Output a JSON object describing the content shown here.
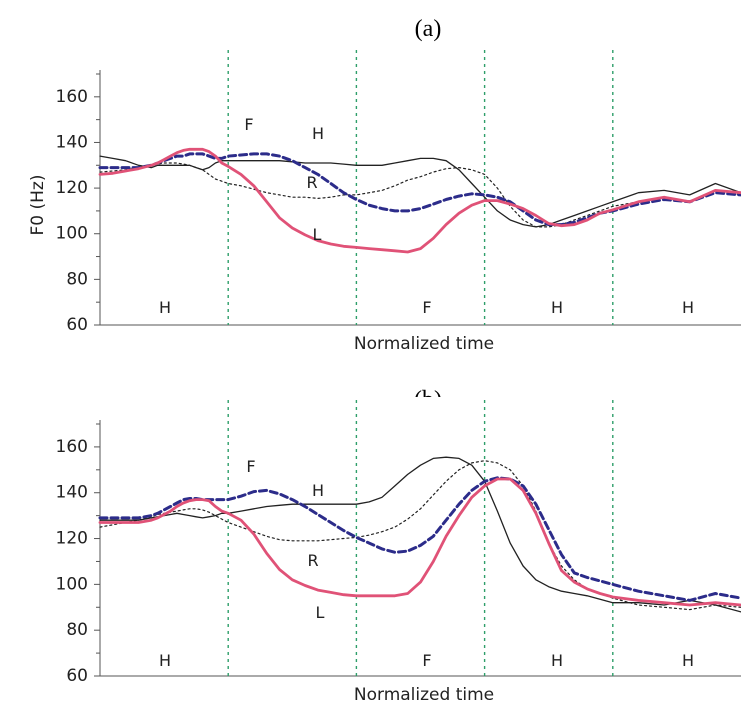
{
  "figure": {
    "y_axis_label": "F0 (Hz)"
  },
  "chart_data": [
    {
      "type": "line",
      "title": "(a)",
      "xlabel": "Normalized time",
      "ylabel": "F0 (Hz)",
      "ylim": [
        60,
        170
      ],
      "yticks": [
        60,
        80,
        100,
        120,
        140,
        160
      ],
      "segment_labels": [
        "H",
        "F",
        "H",
        "H"
      ],
      "curve_labels": [
        "F",
        "H",
        "R",
        "L"
      ],
      "x": [
        0,
        0.1,
        0.2,
        0.3,
        0.4,
        0.45,
        0.5,
        0.55,
        0.6,
        0.65,
        0.7,
        0.75,
        0.8,
        0.85,
        0.9,
        0.95,
        1.0,
        1.1,
        1.2,
        1.3,
        1.4,
        1.5,
        1.6,
        1.7,
        1.8,
        1.9,
        2.0,
        2.1,
        2.2,
        2.3,
        2.4,
        2.5,
        2.6,
        2.7,
        2.8,
        2.9,
        3.0,
        3.1,
        3.2,
        3.3,
        3.4,
        3.5,
        3.6,
        3.7,
        3.8,
        3.9,
        4.0,
        4.2,
        4.4,
        4.6,
        4.8,
        5.0
      ],
      "series": [
        {
          "name": "H",
          "color": "#222222",
          "style": "solid",
          "width": 1.3,
          "values": [
            134,
            133,
            132,
            130,
            129,
            130,
            130,
            130,
            130,
            130,
            130,
            129,
            128,
            129,
            131,
            132,
            132,
            132,
            132,
            132,
            132,
            131.5,
            131,
            131,
            131,
            130.5,
            130,
            130,
            130,
            131,
            132,
            133,
            133,
            132,
            128,
            122,
            116,
            110,
            106,
            104,
            103,
            104,
            106,
            108,
            110,
            112,
            114,
            118,
            119,
            117,
            122,
            118
          ]
        },
        {
          "name": "F",
          "color": "#2c2c8a",
          "style": "dashed",
          "width": 3,
          "values": [
            129,
            129,
            129,
            129,
            130,
            131,
            132,
            133,
            134,
            134,
            135,
            135,
            135,
            134,
            133,
            133,
            134,
            134.5,
            135,
            135,
            134,
            132,
            129,
            126,
            122,
            118,
            115,
            112.5,
            111,
            110,
            110,
            111,
            113,
            115,
            116.5,
            117.5,
            117,
            116,
            114,
            110,
            106,
            104,
            104,
            105,
            107,
            109,
            110,
            113,
            115,
            114,
            118,
            117
          ]
        },
        {
          "name": "R",
          "color": "#222222",
          "style": "dotted",
          "width": 1.2,
          "values": [
            127,
            127.5,
            128,
            129,
            130,
            130.5,
            131,
            131,
            131,
            130.5,
            130,
            129,
            128,
            126,
            124,
            123,
            122,
            121,
            119.5,
            118,
            117,
            116,
            116,
            115.5,
            116,
            117,
            117,
            118,
            119,
            121,
            123.5,
            125,
            127,
            128.5,
            129,
            128,
            126,
            120,
            112,
            106,
            103,
            103,
            104,
            106,
            108,
            110,
            112,
            114,
            116,
            114,
            119,
            117
          ]
        },
        {
          "name": "L",
          "color": "#e05277",
          "style": "solid",
          "width": 2.8,
          "values": [
            126,
            126.5,
            127.5,
            128.5,
            130,
            131,
            132.5,
            134,
            135.5,
            136.5,
            137,
            137,
            137,
            136,
            134,
            131,
            129.5,
            126,
            121,
            114,
            107,
            102.5,
            99.5,
            97,
            95.5,
            94.5,
            94,
            93.5,
            93,
            92.5,
            92,
            93.5,
            98,
            104,
            109,
            112.5,
            114.5,
            114.5,
            113,
            111,
            108,
            104.5,
            103.5,
            104,
            106,
            109,
            110.5,
            114,
            116,
            114,
            119,
            118
          ]
        }
      ]
    },
    {
      "type": "line",
      "title": "(b)",
      "xlabel": "Normalized time",
      "ylabel": "",
      "ylim": [
        60,
        170
      ],
      "yticks": [
        60,
        80,
        100,
        120,
        140,
        160
      ],
      "segment_labels": [
        "H",
        "F",
        "H",
        "H"
      ],
      "curve_labels": [
        "F",
        "H",
        "R",
        "L"
      ],
      "x": [
        0,
        0.1,
        0.2,
        0.3,
        0.4,
        0.45,
        0.5,
        0.55,
        0.6,
        0.65,
        0.7,
        0.75,
        0.8,
        0.85,
        0.9,
        0.95,
        1.0,
        1.1,
        1.2,
        1.3,
        1.4,
        1.5,
        1.6,
        1.7,
        1.8,
        1.9,
        2.0,
        2.1,
        2.2,
        2.3,
        2.4,
        2.5,
        2.6,
        2.7,
        2.8,
        2.9,
        3.0,
        3.1,
        3.2,
        3.3,
        3.4,
        3.5,
        3.6,
        3.7,
        3.8,
        3.9,
        4.0,
        4.2,
        4.4,
        4.6,
        4.8,
        5.0
      ],
      "series": [
        {
          "name": "H",
          "color": "#222222",
          "style": "solid",
          "width": 1.3,
          "values": [
            128,
            128,
            128,
            128,
            129,
            129.5,
            130,
            130.5,
            131,
            130.5,
            130,
            129.5,
            129,
            129.5,
            130,
            131,
            131,
            132,
            133,
            134,
            134.5,
            135,
            135,
            135,
            135,
            135,
            135,
            136,
            138,
            143,
            148,
            152,
            155,
            155.5,
            155,
            152,
            145,
            132,
            118,
            108,
            102,
            99,
            97,
            96,
            95,
            93.5,
            92,
            92,
            91,
            93,
            91,
            88
          ]
        },
        {
          "name": "F",
          "color": "#2c2c8a",
          "style": "dashed",
          "width": 3,
          "values": [
            129,
            129,
            129,
            129,
            130,
            131,
            132.5,
            134,
            135.5,
            137,
            137.5,
            137.5,
            137,
            137,
            137,
            137,
            137,
            138.5,
            140.5,
            141,
            139.5,
            137,
            134,
            130.5,
            127,
            123.5,
            120.5,
            118,
            115.5,
            114,
            114.5,
            117,
            121,
            128,
            135,
            141,
            145,
            146.5,
            146,
            143,
            135,
            124,
            113,
            105,
            103,
            101.5,
            100,
            97,
            95,
            93,
            96,
            94
          ]
        },
        {
          "name": "R",
          "color": "#222222",
          "style": "dotted",
          "width": 1.2,
          "values": [
            125,
            126,
            127,
            128,
            129.5,
            130.5,
            131,
            131.5,
            132,
            132.5,
            133,
            133,
            132.5,
            131.5,
            130,
            128.5,
            127,
            125,
            123,
            121,
            119.5,
            119,
            119,
            119,
            119.5,
            120,
            120.5,
            121.5,
            123,
            125,
            128.5,
            133,
            139,
            145,
            150,
            153,
            154,
            153,
            150,
            143,
            132,
            118,
            108,
            102,
            98,
            96,
            94,
            91,
            90,
            89,
            91,
            90
          ]
        },
        {
          "name": "L",
          "color": "#e05277",
          "style": "solid",
          "width": 2.8,
          "values": [
            127,
            127,
            127,
            127,
            128,
            129,
            130.5,
            132,
            134,
            135.5,
            136.5,
            137,
            137,
            136.5,
            134,
            132,
            131,
            128,
            122,
            113.5,
            106.5,
            102,
            99.5,
            97.5,
            96.5,
            95.5,
            95,
            95,
            95,
            95,
            96,
            101,
            110,
            121,
            130,
            138,
            143,
            146,
            146,
            141,
            131,
            118,
            106,
            101,
            98,
            96,
            94.5,
            93,
            92,
            91,
            92,
            91
          ]
        }
      ]
    }
  ]
}
